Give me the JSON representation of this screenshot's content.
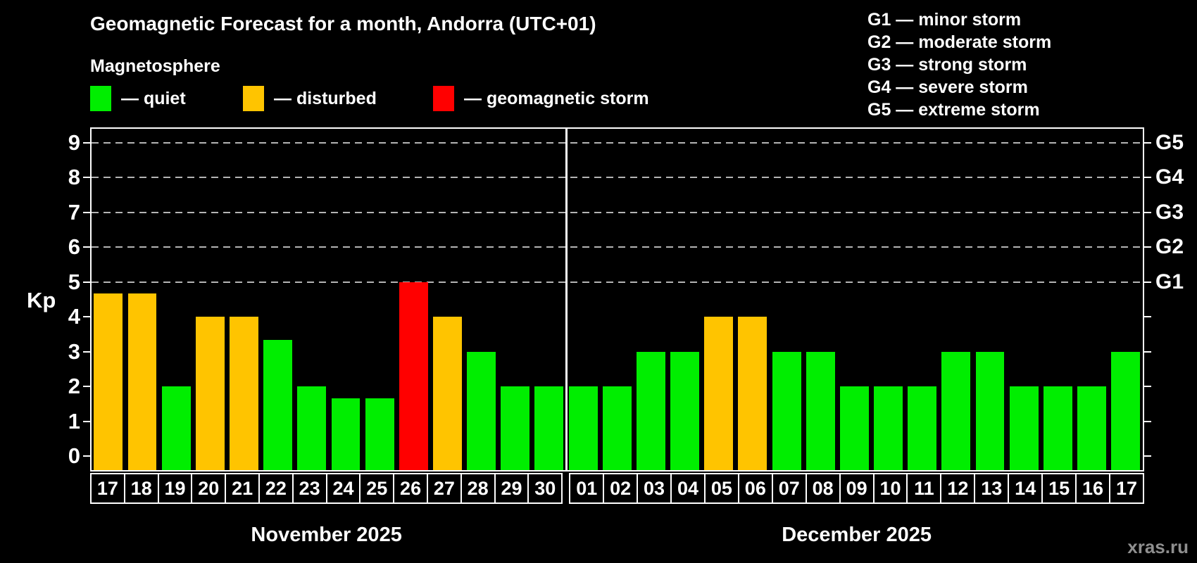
{
  "title": "Geomagnetic Forecast for a month, Andorra (UTC+01)",
  "subtitle": "Magnetosphere",
  "kp_axis_label": "Kp",
  "watermark": "xras.ru",
  "colors": {
    "quiet": "#00ee00",
    "disturbed": "#ffc400",
    "storm": "#ff0000",
    "background": "#000000",
    "axis": "#ffffff",
    "grid": "#b4b4b4",
    "watermark": "#8f8f8f"
  },
  "legend": {
    "items": [
      {
        "key": "quiet",
        "label": "— quiet"
      },
      {
        "key": "disturbed",
        "label": "— disturbed"
      },
      {
        "key": "storm",
        "label": "— geomagnetic storm"
      }
    ]
  },
  "g_legend": [
    {
      "code": "G1",
      "label": "G1 — minor storm"
    },
    {
      "code": "G2",
      "label": "G2 — moderate storm"
    },
    {
      "code": "G3",
      "label": "G3 — strong storm"
    },
    {
      "code": "G4",
      "label": "G4 — severe storm"
    },
    {
      "code": "G5",
      "label": "G5 — extreme storm"
    }
  ],
  "chart_data": {
    "type": "bar",
    "title": "Geomagnetic Forecast for a month, Andorra (UTC+01)",
    "ylabel": "Kp",
    "ylim": [
      -0.4,
      9.4
    ],
    "yticks": [
      0,
      1,
      2,
      3,
      4,
      5,
      6,
      7,
      8,
      9
    ],
    "grid": "dashed horizontal lines at Kp 5-9 only",
    "legend_position": "top",
    "grid_levels": [
      {
        "kp": 5,
        "g": "G1"
      },
      {
        "kp": 6,
        "g": "G2"
      },
      {
        "kp": 7,
        "g": "G3"
      },
      {
        "kp": 8,
        "g": "G4"
      },
      {
        "kp": 9,
        "g": "G5"
      }
    ],
    "months": [
      {
        "label": "November 2025",
        "days": [
          {
            "day": "17",
            "kp": 4.67,
            "status": "disturbed"
          },
          {
            "day": "18",
            "kp": 4.67,
            "status": "disturbed"
          },
          {
            "day": "19",
            "kp": 2,
            "status": "quiet"
          },
          {
            "day": "20",
            "kp": 4,
            "status": "disturbed"
          },
          {
            "day": "21",
            "kp": 4,
            "status": "disturbed"
          },
          {
            "day": "22",
            "kp": 3.33,
            "status": "quiet"
          },
          {
            "day": "23",
            "kp": 2,
            "status": "quiet"
          },
          {
            "day": "24",
            "kp": 1.67,
            "status": "quiet"
          },
          {
            "day": "25",
            "kp": 1.67,
            "status": "quiet"
          },
          {
            "day": "26",
            "kp": 5,
            "status": "storm"
          },
          {
            "day": "27",
            "kp": 4,
            "status": "disturbed"
          },
          {
            "day": "28",
            "kp": 3,
            "status": "quiet"
          },
          {
            "day": "29",
            "kp": 2,
            "status": "quiet"
          },
          {
            "day": "30",
            "kp": 2,
            "status": "quiet"
          }
        ]
      },
      {
        "label": "December 2025",
        "days": [
          {
            "day": "01",
            "kp": 2,
            "status": "quiet"
          },
          {
            "day": "02",
            "kp": 2,
            "status": "quiet"
          },
          {
            "day": "03",
            "kp": 3,
            "status": "quiet"
          },
          {
            "day": "04",
            "kp": 3,
            "status": "quiet"
          },
          {
            "day": "05",
            "kp": 4,
            "status": "disturbed"
          },
          {
            "day": "06",
            "kp": 4,
            "status": "disturbed"
          },
          {
            "day": "07",
            "kp": 3,
            "status": "quiet"
          },
          {
            "day": "08",
            "kp": 3,
            "status": "quiet"
          },
          {
            "day": "09",
            "kp": 2,
            "status": "quiet"
          },
          {
            "day": "10",
            "kp": 2,
            "status": "quiet"
          },
          {
            "day": "11",
            "kp": 2,
            "status": "quiet"
          },
          {
            "day": "12",
            "kp": 3,
            "status": "quiet"
          },
          {
            "day": "13",
            "kp": 3,
            "status": "quiet"
          },
          {
            "day": "14",
            "kp": 2,
            "status": "quiet"
          },
          {
            "day": "15",
            "kp": 2,
            "status": "quiet"
          },
          {
            "day": "16",
            "kp": 2,
            "status": "quiet"
          },
          {
            "day": "17",
            "kp": 3,
            "status": "quiet"
          }
        ]
      }
    ]
  }
}
